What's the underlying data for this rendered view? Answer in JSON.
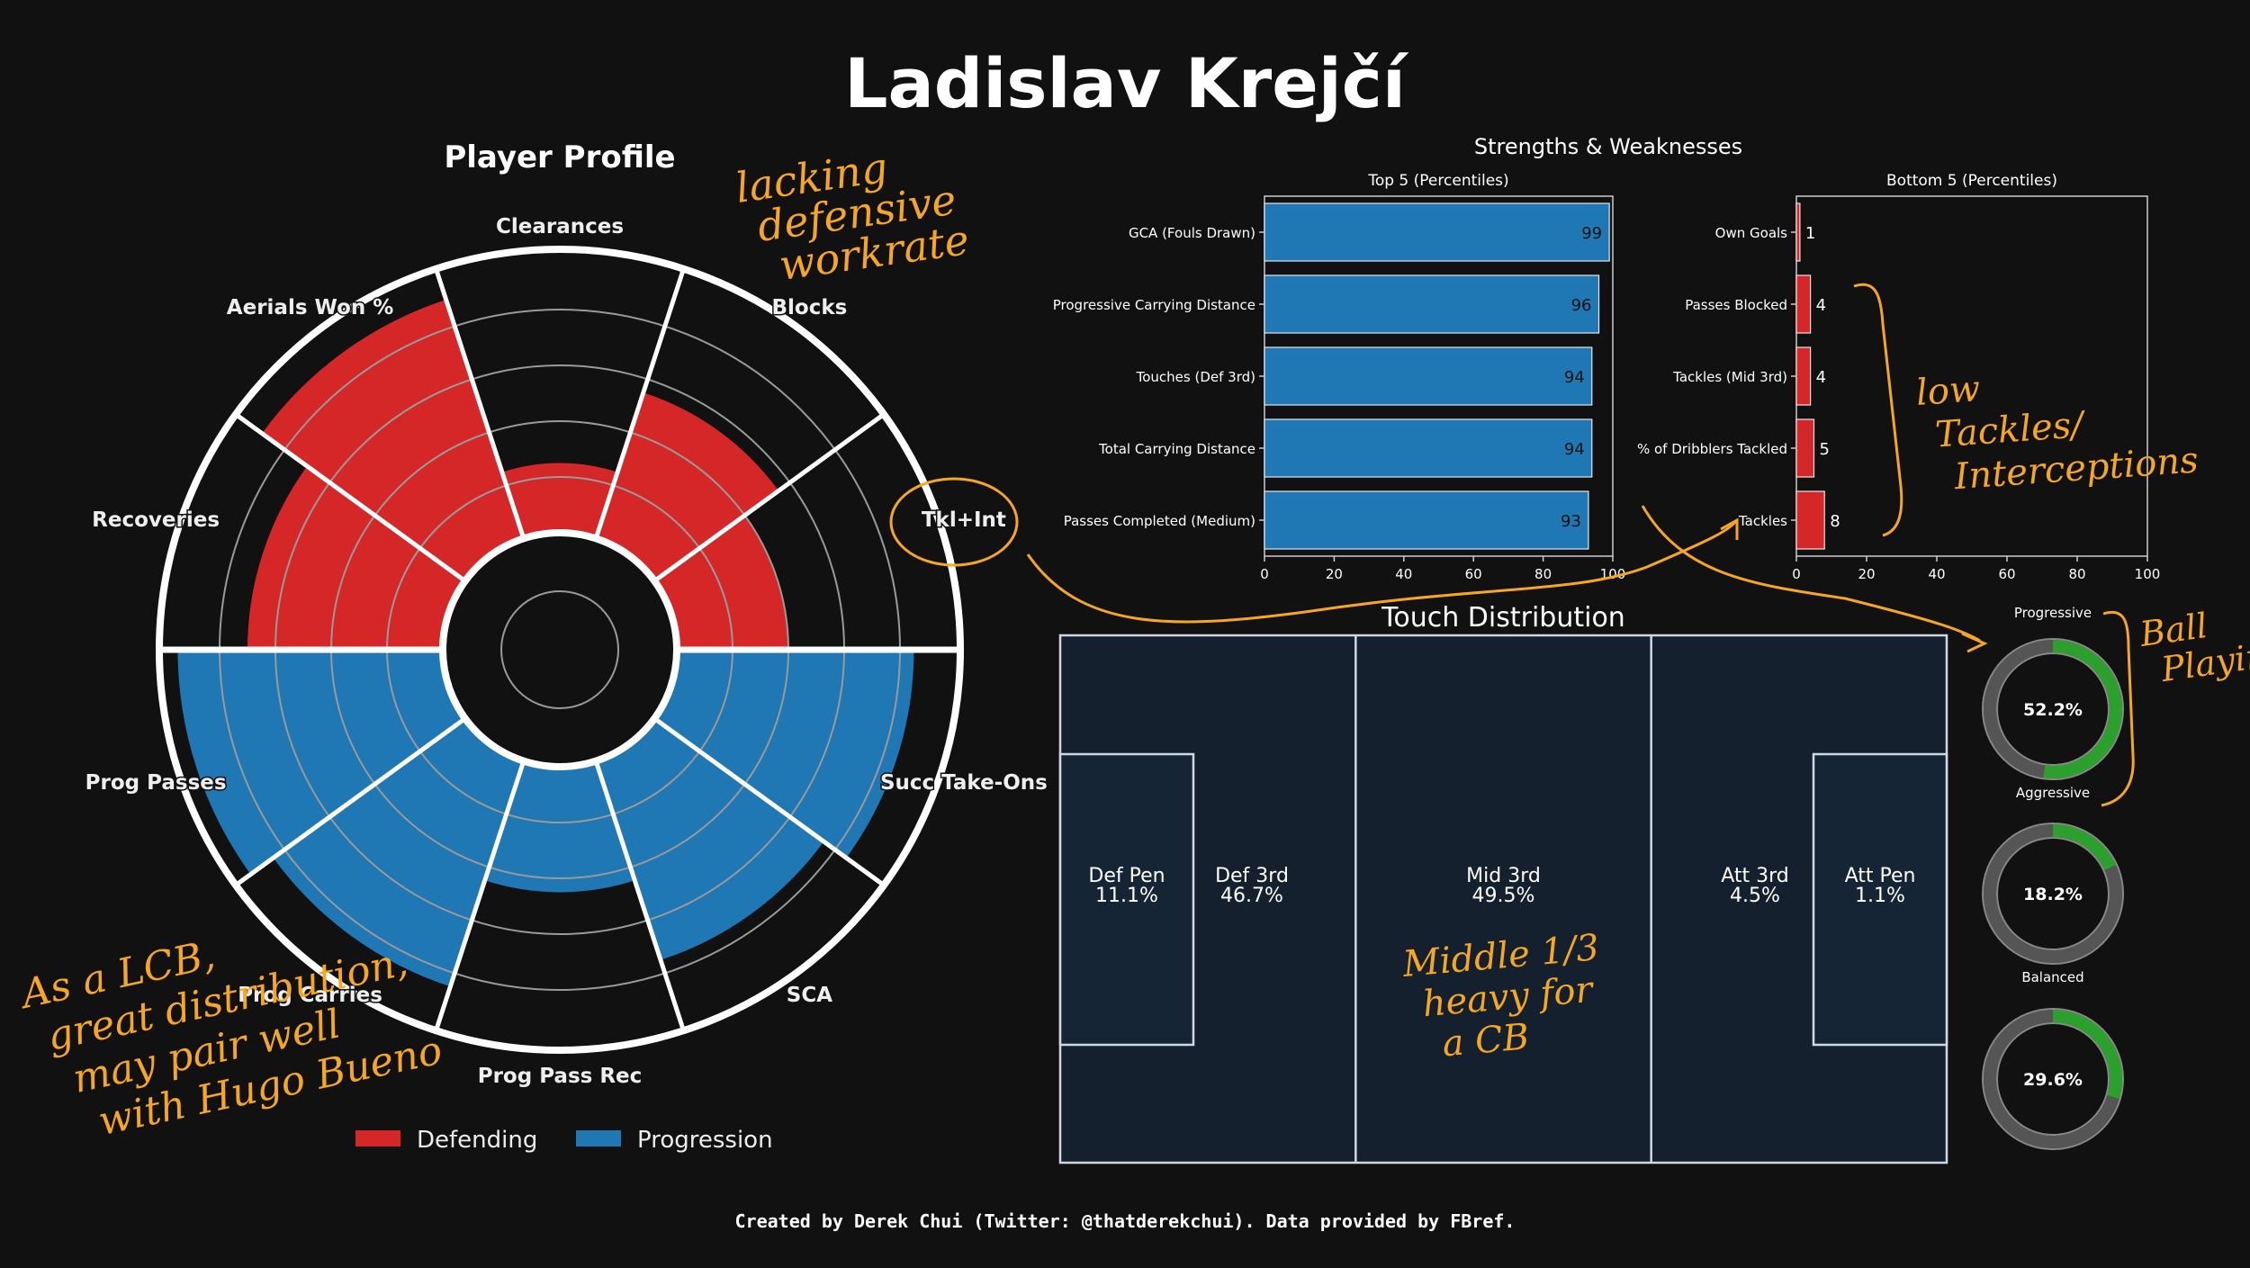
{
  "title": "Ladislav Krejčí",
  "footer": "Created by Derek Chui (Twitter: @thatderekchui). Data provided by FBref.",
  "colors": {
    "background": "#111111",
    "defending": "#d62728",
    "progression": "#1f77b4",
    "pitch": "#14202e",
    "donut_fill": "#2ca02c",
    "donut_track": "#555555",
    "annotation": "#f5a623"
  },
  "chart_data": [
    {
      "type": "radar",
      "title": "Player Profile",
      "radial_range": [
        0,
        100
      ],
      "categories": [
        "Clearances",
        "Blocks",
        "Tkl+Int",
        "Succ Take-Ons",
        "SCA",
        "Prog Pass Rec",
        "Prog Carries",
        "Prog Passes",
        "Recoveries",
        "Aerials Won %"
      ],
      "values": [
        25,
        55,
        40,
        85,
        75,
        45,
        85,
        95,
        70,
        90
      ],
      "groups": [
        "Defending",
        "Defending",
        "Defending",
        "Progression",
        "Progression",
        "Progression",
        "Progression",
        "Progression",
        "Defending",
        "Defending"
      ],
      "legend": [
        "Defending",
        "Progression"
      ],
      "legend_position": "bottom"
    },
    {
      "type": "bar",
      "title": "Top 5 (Percentiles)",
      "categories": [
        "GCA (Fouls Drawn)",
        "Progressive Carrying Distance",
        "Touches (Def 3rd)",
        "Total Carrying Distance",
        "Passes Completed (Medium)"
      ],
      "values": [
        99,
        96,
        94,
        94,
        93
      ],
      "xlim": [
        0,
        100
      ],
      "xticks": [
        0,
        20,
        40,
        60,
        80,
        100
      ],
      "orientation": "horizontal"
    },
    {
      "type": "bar",
      "title": "Bottom 5 (Percentiles)",
      "categories": [
        "Own Goals",
        "Passes Blocked",
        "Tackles (Mid 3rd)",
        "% of Dribblers Tackled",
        "Tackles"
      ],
      "values": [
        1,
        4,
        4,
        5,
        8
      ],
      "xlim": [
        0,
        100
      ],
      "xticks": [
        0,
        20,
        40,
        60,
        80,
        100
      ],
      "orientation": "horizontal"
    },
    {
      "type": "table",
      "title": "Touch Distribution",
      "zones": [
        {
          "label": "Def Pen",
          "value": "11.1%"
        },
        {
          "label": "Def 3rd",
          "value": "46.7%"
        },
        {
          "label": "Mid 3rd",
          "value": "49.5%"
        },
        {
          "label": "Att 3rd",
          "value": "4.5%"
        },
        {
          "label": "Att Pen",
          "value": "1.1%"
        }
      ]
    },
    {
      "type": "pie",
      "donuts": [
        {
          "value": 52.2,
          "label": "52.2%",
          "top_label": "Progressive",
          "bottom_label": "Aggressive"
        },
        {
          "value": 18.2,
          "label": "18.2%",
          "top_label": "",
          "bottom_label": "Balanced"
        },
        {
          "value": 29.6,
          "label": "29.6%",
          "top_label": "",
          "bottom_label": ""
        }
      ]
    }
  ],
  "section_title": "Strengths & Weaknesses",
  "annotations": {
    "defensive": [
      "lacking",
      "defensive",
      "workrate"
    ],
    "tackles": [
      "low",
      "Tackles/",
      "Interceptions"
    ],
    "ball": [
      "Ball",
      "Playing"
    ],
    "middle": [
      "Middle 1/3",
      "heavy for",
      "a CB"
    ],
    "lcb": [
      "As a LCB,",
      "great distribution,",
      "may pair well",
      "with Hugo Bueno"
    ]
  }
}
